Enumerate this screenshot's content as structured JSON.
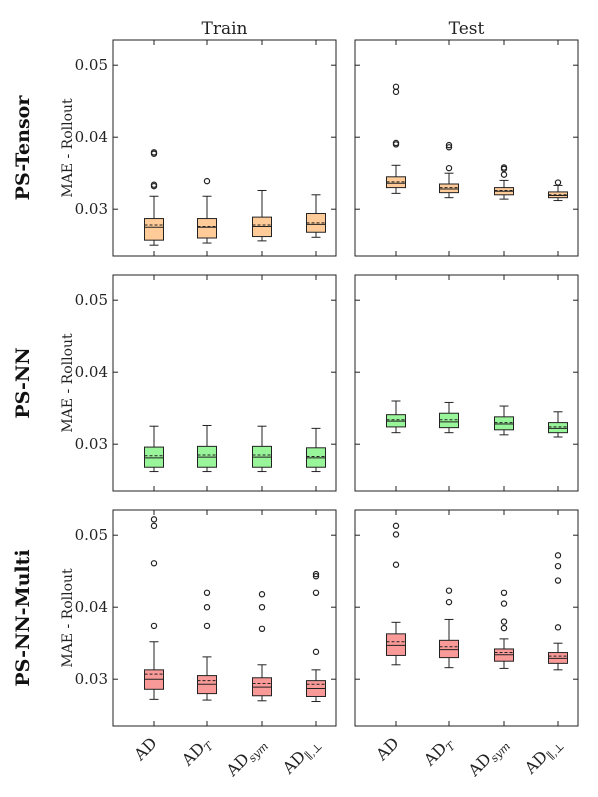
{
  "chart_data": {
    "type": "box",
    "columns": [
      "Train",
      "Test"
    ],
    "rows": [
      "PS-Tensor",
      "PS-NN",
      "PS-NN-Multi"
    ],
    "ylabel": "MAE - Rollout",
    "ylim": [
      0.0235,
      0.0535
    ],
    "yticks": [
      0.03,
      0.04,
      0.05
    ],
    "ytick_labels": [
      "0.03",
      "0.04",
      "0.05"
    ],
    "categories": [
      {
        "base": "AD",
        "sub": ""
      },
      {
        "base": "AD",
        "sub": "T"
      },
      {
        "base": "AD",
        "sub": "sym"
      },
      {
        "base": "AD",
        "sub": "∥,⊥"
      }
    ],
    "row_colors": {
      "PS-Tensor": "#ffcc99",
      "PS-NN": "#99f599",
      "PS-NN-Multi": "#fa9a98"
    },
    "mean_line": "dashed",
    "median_line": "solid",
    "panels": [
      {
        "row": "PS-Tensor",
        "col": "Train",
        "boxes": [
          {
            "whislo": 0.025,
            "q1": 0.0257,
            "med": 0.0275,
            "mean": 0.0278,
            "q3": 0.0287,
            "whishi": 0.0318,
            "fliers": [
              0.0332,
              0.0334,
              0.0377,
              0.0379
            ]
          },
          {
            "whislo": 0.0253,
            "q1": 0.026,
            "med": 0.0275,
            "mean": 0.0276,
            "q3": 0.0287,
            "whishi": 0.0318,
            "fliers": [
              0.0339
            ]
          },
          {
            "whislo": 0.0256,
            "q1": 0.0262,
            "med": 0.0276,
            "mean": 0.0278,
            "q3": 0.0289,
            "whishi": 0.0326,
            "fliers": []
          },
          {
            "whislo": 0.0261,
            "q1": 0.0268,
            "med": 0.0279,
            "mean": 0.0281,
            "q3": 0.0294,
            "whishi": 0.032,
            "fliers": []
          }
        ]
      },
      {
        "row": "PS-Tensor",
        "col": "Test",
        "boxes": [
          {
            "whislo": 0.0322,
            "q1": 0.033,
            "med": 0.0336,
            "mean": 0.0338,
            "q3": 0.0345,
            "whishi": 0.0361,
            "fliers": [
              0.039,
              0.0392,
              0.0463,
              0.047
            ]
          },
          {
            "whislo": 0.0316,
            "q1": 0.0323,
            "med": 0.0328,
            "mean": 0.033,
            "q3": 0.0335,
            "whishi": 0.035,
            "fliers": [
              0.0357,
              0.0386,
              0.0389
            ]
          },
          {
            "whislo": 0.0314,
            "q1": 0.032,
            "med": 0.0325,
            "mean": 0.0326,
            "q3": 0.033,
            "whishi": 0.034,
            "fliers": [
              0.0348,
              0.0356,
              0.0358
            ]
          },
          {
            "whislo": 0.0312,
            "q1": 0.0316,
            "med": 0.0319,
            "mean": 0.032,
            "q3": 0.0324,
            "whishi": 0.0333,
            "fliers": [
              0.0337
            ]
          }
        ]
      },
      {
        "row": "PS-NN",
        "col": "Train",
        "boxes": [
          {
            "whislo": 0.0262,
            "q1": 0.0268,
            "med": 0.0281,
            "mean": 0.0284,
            "q3": 0.0296,
            "whishi": 0.0325,
            "fliers": []
          },
          {
            "whislo": 0.0262,
            "q1": 0.0268,
            "med": 0.0282,
            "mean": 0.0285,
            "q3": 0.0297,
            "whishi": 0.0326,
            "fliers": []
          },
          {
            "whislo": 0.0262,
            "q1": 0.0268,
            "med": 0.0282,
            "mean": 0.0285,
            "q3": 0.0297,
            "whishi": 0.0325,
            "fliers": []
          },
          {
            "whislo": 0.0262,
            "q1": 0.0268,
            "med": 0.0281,
            "mean": 0.0283,
            "q3": 0.0295,
            "whishi": 0.0322,
            "fliers": []
          }
        ]
      },
      {
        "row": "PS-NN",
        "col": "Test",
        "boxes": [
          {
            "whislo": 0.0316,
            "q1": 0.0324,
            "med": 0.0332,
            "mean": 0.0334,
            "q3": 0.0341,
            "whishi": 0.036,
            "fliers": []
          },
          {
            "whislo": 0.0316,
            "q1": 0.0323,
            "med": 0.0331,
            "mean": 0.0334,
            "q3": 0.0343,
            "whishi": 0.0358,
            "fliers": []
          },
          {
            "whislo": 0.0313,
            "q1": 0.032,
            "med": 0.0328,
            "mean": 0.033,
            "q3": 0.0338,
            "whishi": 0.0353,
            "fliers": []
          },
          {
            "whislo": 0.031,
            "q1": 0.0316,
            "med": 0.0322,
            "mean": 0.0324,
            "q3": 0.033,
            "whishi": 0.0345,
            "fliers": []
          }
        ]
      },
      {
        "row": "PS-NN-Multi",
        "col": "Train",
        "boxes": [
          {
            "whislo": 0.0272,
            "q1": 0.0286,
            "med": 0.03,
            "mean": 0.0307,
            "q3": 0.0313,
            "whishi": 0.0352,
            "fliers": [
              0.0374,
              0.0461,
              0.0513,
              0.0522
            ]
          },
          {
            "whislo": 0.0271,
            "q1": 0.028,
            "med": 0.0293,
            "mean": 0.0298,
            "q3": 0.0305,
            "whishi": 0.0331,
            "fliers": [
              0.0374,
              0.04,
              0.042
            ]
          },
          {
            "whislo": 0.027,
            "q1": 0.0277,
            "med": 0.0289,
            "mean": 0.0294,
            "q3": 0.0302,
            "whishi": 0.032,
            "fliers": [
              0.037,
              0.04,
              0.0418
            ]
          },
          {
            "whislo": 0.0269,
            "q1": 0.0276,
            "med": 0.0287,
            "mean": 0.0293,
            "q3": 0.0298,
            "whishi": 0.0313,
            "fliers": [
              0.0338,
              0.042,
              0.0443,
              0.0446
            ]
          }
        ]
      },
      {
        "row": "PS-NN-Multi",
        "col": "Test",
        "boxes": [
          {
            "whislo": 0.032,
            "q1": 0.0333,
            "med": 0.0347,
            "mean": 0.0352,
            "q3": 0.0363,
            "whishi": 0.0379,
            "fliers": [
              0.0459,
              0.0501,
              0.0513
            ]
          },
          {
            "whislo": 0.0316,
            "q1": 0.033,
            "med": 0.0341,
            "mean": 0.0345,
            "q3": 0.0354,
            "whishi": 0.0383,
            "fliers": [
              0.0407,
              0.0423
            ]
          },
          {
            "whislo": 0.0315,
            "q1": 0.0325,
            "med": 0.0334,
            "mean": 0.0337,
            "q3": 0.0342,
            "whishi": 0.0356,
            "fliers": [
              0.0371,
              0.038,
              0.0405,
              0.042
            ]
          },
          {
            "whislo": 0.0313,
            "q1": 0.0322,
            "med": 0.0329,
            "mean": 0.0332,
            "q3": 0.0337,
            "whishi": 0.035,
            "fliers": [
              0.0372,
              0.0437,
              0.0457,
              0.0472
            ]
          }
        ]
      }
    ]
  }
}
